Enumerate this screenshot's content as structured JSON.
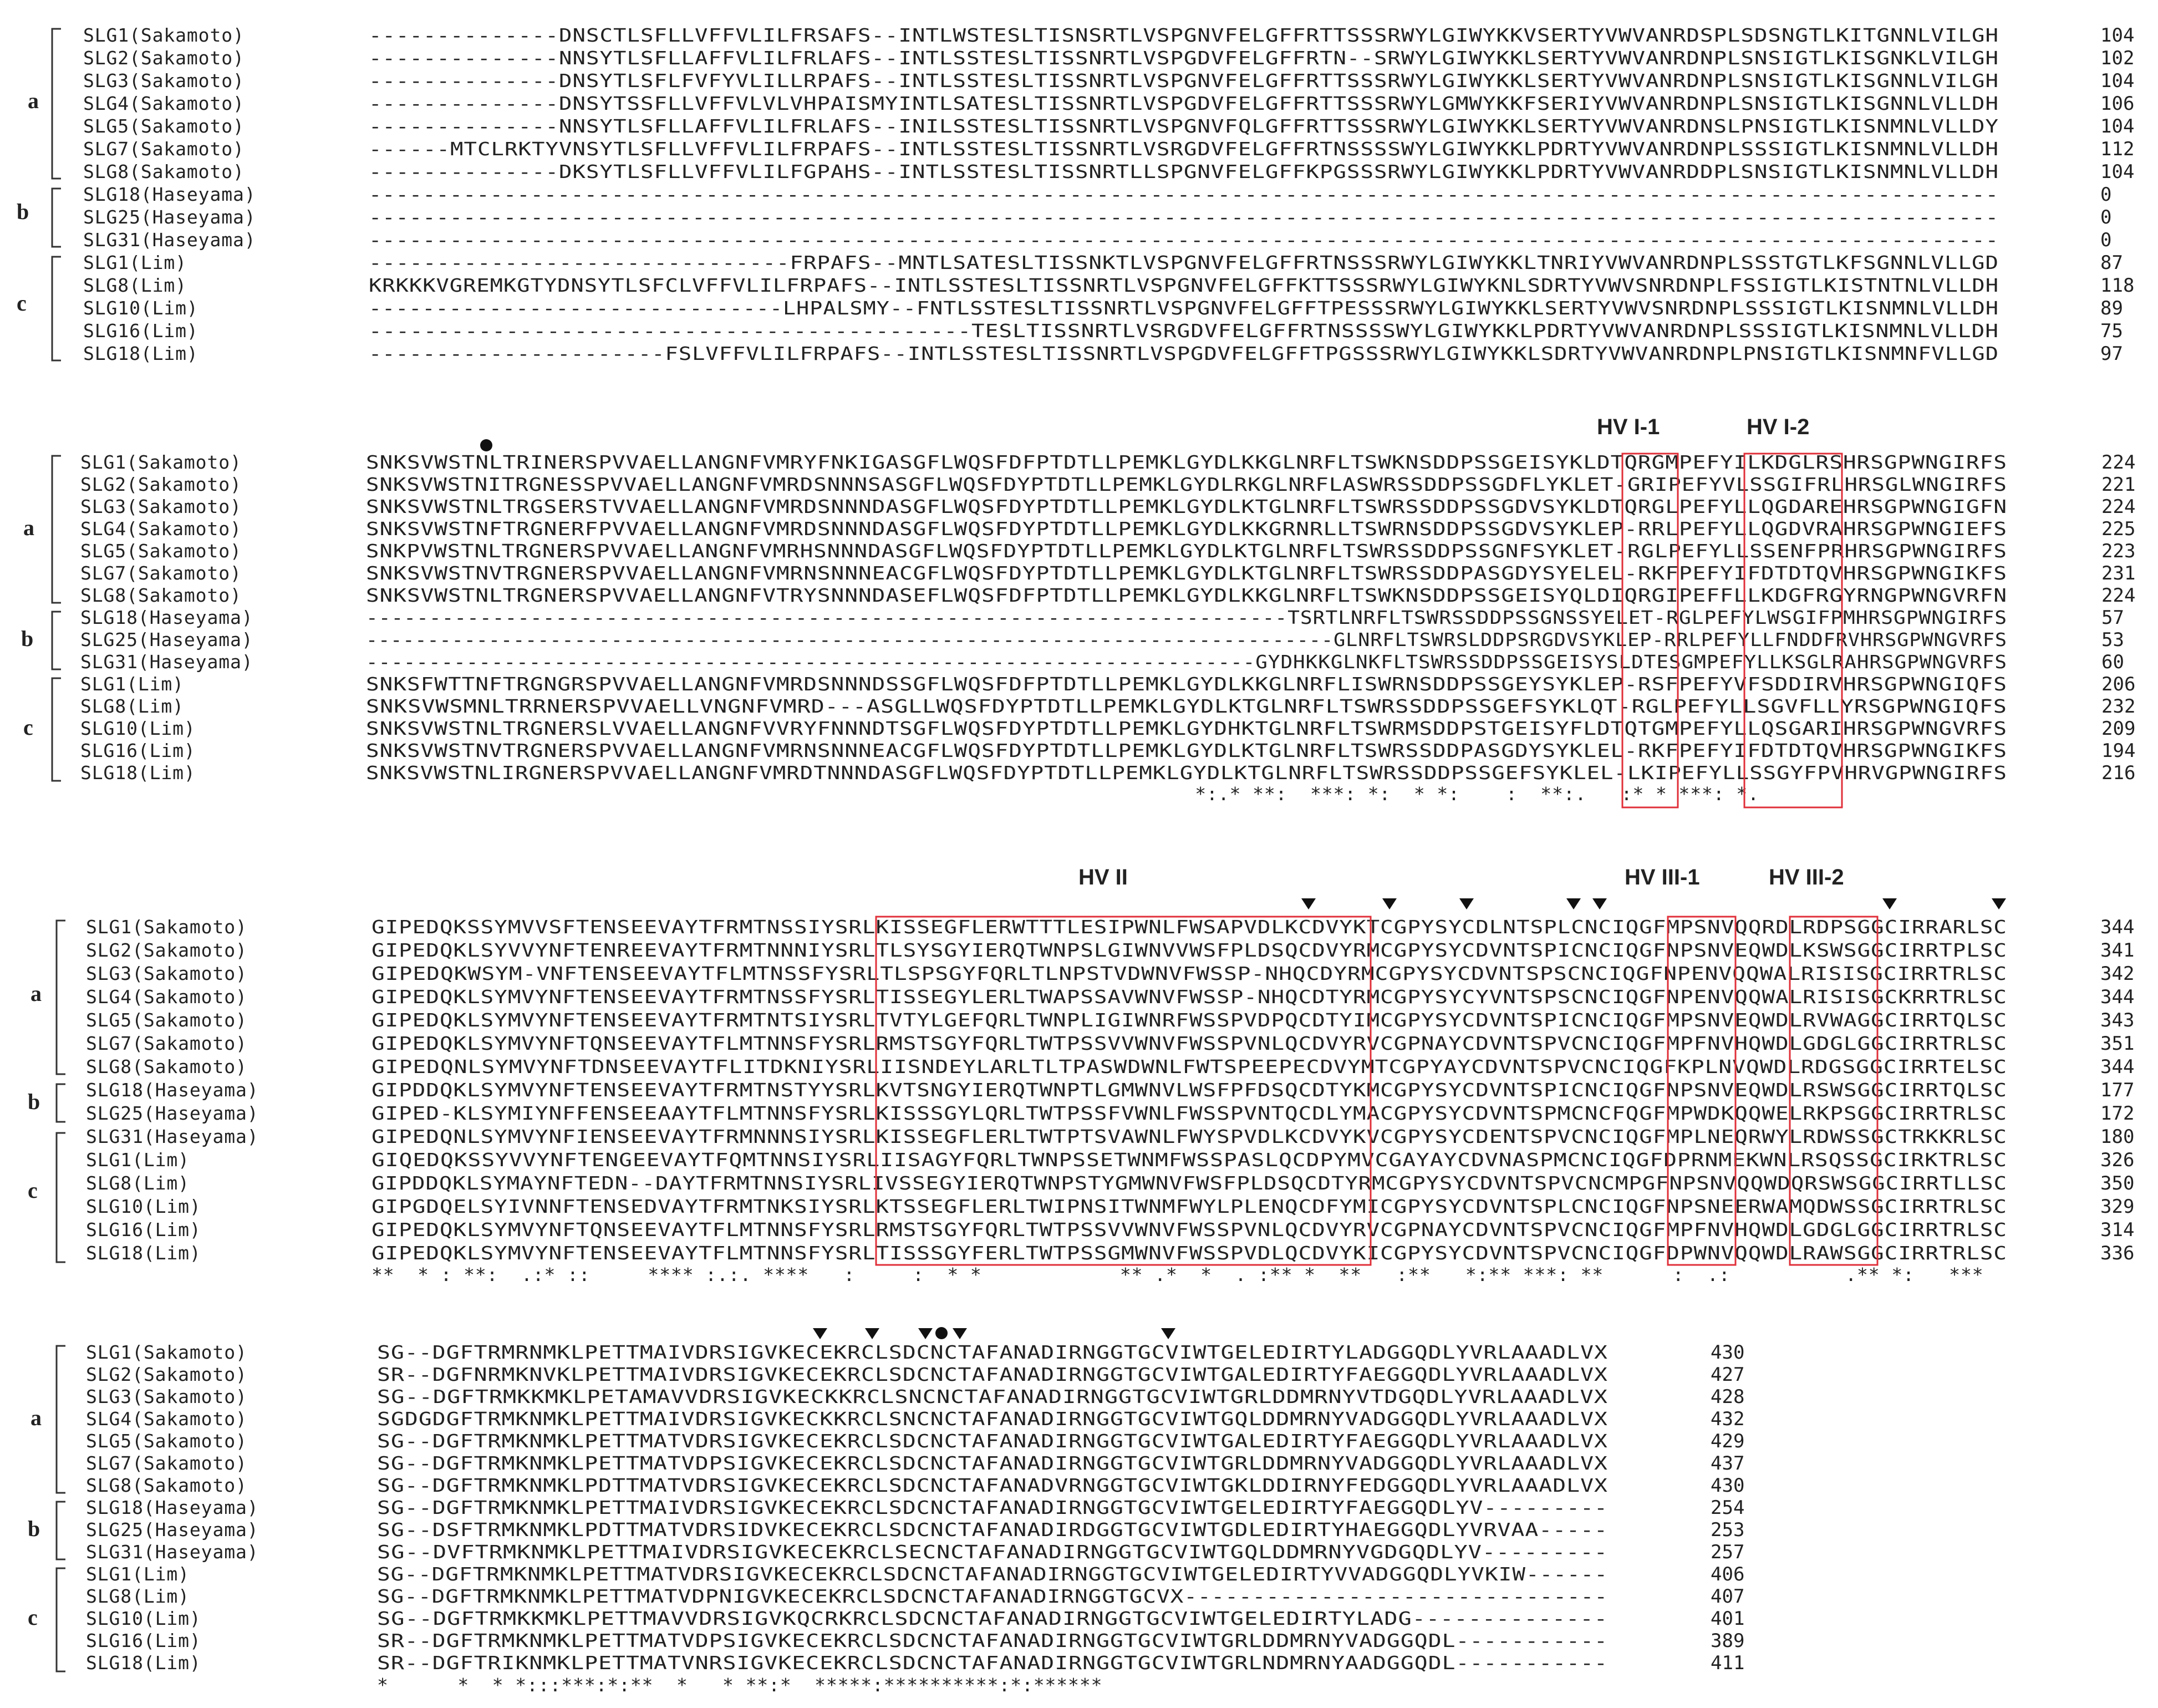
{
  "blocks": [
    {
      "rows": [
        {
          "name": "SLG1(Sakamoto)",
          "seq": "--------------DNSCTLSFLLVFFVLILFRSAFS--INTLWSTESLTISNSRTLVSPGNVFELGFFRTTSSSRWYLGIWYKKVSERTYVWVANRDSPLSDSNGTLKITGNNLVILGH",
          "len": "104"
        },
        {
          "name": "SLG2(Sakamoto)",
          "seq": "--------------NNSYTLSFLLAFFVLILFRLAFS--INTLSSTESLTISSNRTLVSPGDVFELGFFRTN--SRWYLGIWYKKLSERTYVWVANRDNPLSNSIGTLKISGNKLVILGH",
          "len": "102"
        },
        {
          "name": "SLG3(Sakamoto)",
          "seq": "--------------DNSYTLSFLFVFYVLILLRPAFS--INTLSSTESLTISSNRTLVSPGNVFELGFFRTTSSSRWYLGIWYKKLSERTYVWVANRDNPLSNSIGTLKISGNNLVILGH",
          "len": "104"
        },
        {
          "name": "SLG4(Sakamoto)",
          "seq": "--------------DNSYTSSFLLVFFVLVLVHPAISMYINTLSATESLTISSNRTLVSPGDVFELGFFRTTSSSRWYLGMWYKKFSERIYVWVANRDNPLSNSIGTLKISGNNLVLLDH",
          "len": "106"
        },
        {
          "name": "SLG5(Sakamoto)",
          "seq": "--------------NNSYTLSFLLAFFVLILFRLAFS--INILSSTESLTISSNRTLVSPGNVFQLGFFRTTSSSRWYLGIWYKKLSERTYVWVANRDNSLPNSIGTLKISNMNLVLLDY",
          "len": "104"
        },
        {
          "name": "SLG7(Sakamoto)",
          "seq": "------MTCLRKTYVNSYTLSFLLVFFVLILFRPAFS--INTLSSTESLTISSNRTLVSRGDVFELGFFRTNSSSSWYLGIWYKKLPDRTYVWVANRDNPLSSSIGTLKISNMNLVLLDH",
          "len": "112"
        },
        {
          "name": "SLG8(Sakamoto)",
          "seq": "--------------DKSYTLSFLLVFFVLILFGPAHS--INTLSSTESLTISSNRTLLSPGNVFELGFFKPGSSSRWYLGIWYKKLPDRTYVWVANRDDPLSNSIGTLKISNMNLVLLDH",
          "len": "104"
        },
        {
          "name": "SLG18(Haseyama)",
          "seq": "-------------------------------------------------------------------------------------------------------------------------",
          "len": "0"
        },
        {
          "name": "SLG25(Haseyama)",
          "seq": "-------------------------------------------------------------------------------------------------------------------------",
          "len": "0"
        },
        {
          "name": "SLG31(Haseyama)",
          "seq": "-------------------------------------------------------------------------------------------------------------------------",
          "len": "0"
        },
        {
          "name": "SLG1(Lim)",
          "seq": "-------------------------------FRPAFS--MNTLSATESLTISSNKTLVSPGNVFELGFFRTNSSSRWYLGIWYKKLTNRIYVWVANRDNPLSSSTGTLKFSGNNLVLLGD",
          "len": "87"
        },
        {
          "name": "SLG8(Lim)",
          "seq": "KRKKKVGREMKGTYDNSYTLSFCLVFFVLILFRPAFS--INTLSSTESLTISSNRTLVSPGNVFELGFFKTTSSSRWYLGIWYKNLSDRTYVWVSNRDNPLFSSIGTLKISTNTNLVLLDH",
          "len": "118"
        },
        {
          "name": "SLG10(Lim)",
          "seq": "-------------------------------LHPALSMY--FNTLSSTESLTISSNRTLVSPGNVFELGFFTPESSSRWYLGIWYKKLSERTYVWVSNRDNPLSSSIGTLKISNMNLVLLDH",
          "len": "89"
        },
        {
          "name": "SLG16(Lim)",
          "seq": "--------------------------------------------TESLTISSNRTLVSRGDVFELGFFRTNSSSSWYLGIWYKKLPDRTYVWVANRDNPLSSSIGTLKISNMNLVLLDH",
          "len": "75"
        },
        {
          "name": "SLG18(Lim)",
          "seq": "----------------------FSLVFFVLILFRPAFS--INTLSSTESLTISSNRTLVSPGDVFELGFFTPGSSSRWYLGIWYKKLSDRTYVWVANRDNPLPNSIGTLKISNMNFVLLGD",
          "len": "97"
        }
      ],
      "consensus": "",
      "features": []
    },
    {
      "rows": [
        {
          "name": "SLG1(Sakamoto)",
          "seq": "SNKSVWSTNLTRINERSPVVAELLANGNFVMRYFNKIGASGFLWQSFDFPTDTLLPEMKLGYDLKKGLNRFLTSWKNSDDPSSGEISYKLDTQRGMPEFYILKDGLRSHRSGPWNGIRFS",
          "len": "224"
        },
        {
          "name": "SLG2(Sakamoto)",
          "seq": "SNKSVWSTNITRGNESSPVVAELLANGNFVMRDSNNNSASGFLWQSFDYPTDTLLPEMKLGYDLRKGLNRFLASWRSSDDPSSGDFLYKLET-GRIPEFYVLSSGIFRLHRSGLWNGIRFS",
          "len": "221"
        },
        {
          "name": "SLG3(Sakamoto)",
          "seq": "SNKSVWSTNLTRGSERSTVVAELLANGNFVMRDSNNNDASGFLWQSFDYPTDTLLPEMKLGYDLKTGLNRFLTSWRSSDDPSSGDVSYKLDTQRGLPEFYLLQGDAREHRSGPWNGIGFN",
          "len": "224"
        },
        {
          "name": "SLG4(Sakamoto)",
          "seq": "SNKSVWSTNFTRGNERFPVVAELLANGNFVMRDSNNNDASGFLWQSFDYPTDTLLPEMKLGYDLKKGRNRLLTSWRNSDDPSSGDVSYKLEP-RRLPEFYLLQGDVRAHRSGPWNGIEFS",
          "len": "225"
        },
        {
          "name": "SLG5(Sakamoto)",
          "seq": "SNKPVWSTNLTRGNERSPVVAELLANGNFVMRHSNNNDASGFLWQSFDYPTDTLLPEMKLGYDLKTGLNRFLTSWRSSDDPSSGNFSYKLET-RGLPEFYLLSSENFPRHRSGPWNGIRFS",
          "len": "223"
        },
        {
          "name": "SLG7(Sakamoto)",
          "seq": "SNKSVWSTNVTRGNERSPVVAELLANGNFVMRNSNNNEACGFLWQSFDYPTDTLLPEMKLGYDLKTGLNRFLTSWRSSDDPASGDYSYELEL-RKFPEFYIFDTDTQVHRSGPWNGIKFS",
          "len": "231"
        },
        {
          "name": "SLG8(Sakamoto)",
          "seq": "SNKSVWSTNLTRGNERSPVVAELLANGNFVTRYSNNNDASEFLWQSFDFPTDTLLPEMKLGYDLKKGLNRFLTSWKNSDDPSSGEISYQLDIQRGIPEFFLLKDGFRGYRNGPWNGVRFN",
          "len": "224"
        },
        {
          "name": "SLG18(Haseyama)",
          "seq": "-------------------------------------------------------------------------TSRTLNRFLTSWRSSDDPSSGNSSYELET-RGLPEFYLWSGIFPMHRSGPWNGIRFS",
          "len": "57"
        },
        {
          "name": "SLG25(Haseyama)",
          "seq": "-------------------------------------------------------------------------------GLNRFLTSWRSLDDPSRGDVSYKLEP-RRLPEFYLLFNDDFRVHRSGPWNGVRFS",
          "len": "53"
        },
        {
          "name": "SLG31(Haseyama)",
          "seq": "-----------------------------------------------------------------------GYDHKKGLNKFLTSWRSSDDPSSGEISYSLDTESGMPEFYLLKSGLRAHRSGPWNGVRFS",
          "len": "60"
        },
        {
          "name": "SLG1(Lim)",
          "seq": "SNKSFWTTNFTRGNGRSPVVAELLANGNFVMRDSNNNDSSGFLWQSFDFPTDTLLPEMKLGYDLKKGLNRFLISWRNSDDPSSGEYSYKLEP-RSFPEFYVFSDDIRVHRSGPWNGIQFS",
          "len": "206"
        },
        {
          "name": "SLG8(Lim)",
          "seq": "SNKSVWSMNLTRRNERSPVVAELLVNGNFVMRD---ASGLLWQSFDYPTDTLLPEMKLGYDLKTGLNRFLTSWRSSDDPSSGEFSYKLQT-RGLPEFYLLSGVFLLYRSGPWNGIQFS",
          "len": "232"
        },
        {
          "name": "SLG10(Lim)",
          "seq": "SNKSVWSTNLTRGNERSLVVAELLANGNFVVRYFNNNDTSGFLWQSFDYPTDTLLPEMKLGYDHKTGLNRFLTSWRMSDDPSTGEISYFLDTQTGMPEFYLLQSGARIHRSGPWNGVRFS",
          "len": "209"
        },
        {
          "name": "SLG16(Lim)",
          "seq": "SNKSVWSTNVTRGNERSPVVAELLANGNFVMRNSNNNEACGFLWQSFDYPTDTLLPEMKLGYDLKTGLNRFLTSWRSSDDPASGDYSYKLEL-RKFPEFYIFDTDTQVHRSGPWNGIKFS",
          "len": "194"
        },
        {
          "name": "SLG18(Lim)",
          "seq": "SNKSVWSTNLIRGNERSPVVAELLANGNFVMRDTNNNDASGFLWQSFDYPTDTLLPEMKLGYDLKTGLNRFLTSWRSSDDPSSGEFSYKLEL-LKIPEFYLLSSGYFPVHRVGPWNGIRFS",
          "len": "216"
        }
      ],
      "consensus": "                                                                        *:.* **:  ***: *:  * *:    :  **:.   :* * ***: *.",
      "features": [
        {
          "label": "HV I-1",
          "type": "box"
        },
        {
          "label": "HV I-2",
          "type": "box"
        },
        {
          "label": "",
          "type": "dot"
        }
      ]
    },
    {
      "rows": [
        {
          "name": "SLG1(Sakamoto)",
          "seq": "GIPEDQKSSYMVVSFTENSEEVAYTFRMTNSSIYSRLKISSEGFLERWTTTLESIPWNLFWSAPVDLKCDVYKTCGPYSYCDLNTSPLCNCIQGFMPSNVQQRDLRDPSGGCIRRARLSC",
          "len": "344"
        },
        {
          "name": "SLG2(Sakamoto)",
          "seq": "GIPEDQKLSYVVYNFTENREEVAYTFRMTNNNIYSRLTLSYSGYIERQTWNPSLGIWNVVWSFPLDSQCDVYRMCGPYSYCDVNTSPICNCIQGFNPSNVEQWDLKSWSGGCIRRTPLSC",
          "len": "341"
        },
        {
          "name": "SLG3(Sakamoto)",
          "seq": "GIPEDQKWSYM-VNFTENSEEVAYTFLMTNSSFYSRLTLSPSGYFQRLTLNPSTVDWNVFWSSP-NHQCDYRMCGPYSYCDVNTSPSCNCIQGFNPENVQQWALRISISGCIRRTRLSC",
          "len": "342"
        },
        {
          "name": "SLG4(Sakamoto)",
          "seq": "GIPEDQKLSYMVYNFTENSEEVAYTFRMTNSSFYSRLTISSEGYLERLTWAPSSAVWNVFWSSP-NHQCDTYRMCGPYSYCYVNTSPSCNCIQGFNPENVQQWALRISISGCKRRTRLSC",
          "len": "344"
        },
        {
          "name": "SLG5(Sakamoto)",
          "seq": "GIPEDQKLSYMVYNFTENSEEVAYTFRMTNTSIYSRLTVTYLGEFQRLTWNPLIGIWNRFWSSPVDPQCDTYIMCGPYSYCDVNTSPICNCIQGFMPSNVEQWDLRVWAGGCIRRTQLSC",
          "len": "343"
        },
        {
          "name": "SLG7(Sakamoto)",
          "seq": "GIPEDQKLSYMVYNFTQNSEEVAYTFLMTNNSFYSRLRMSTSGYFQRLTWTPSSVVWNVFWSSPVNLQCDVYRVCGPNAYCDVNTSPVCNCIQGFMPFNVHQWDLGDGLGGCIRRTRLSC",
          "len": "351"
        },
        {
          "name": "SLG8(Sakamoto)",
          "seq": "GIPEDQNLSYMVYNFTDNSEEVAYTFLITDKNIYSRLIISNDEYLARLTLTPASWDWNLFWTSPEEPECDVYMTCGPYAYCDVNTSPVCNCIQGFKPLNVQWDLRDGSGGCIRRTELSC",
          "len": "344"
        },
        {
          "name": "SLG18(Haseyama)",
          "seq": "GIPDDQKLSYMVYNFTENSEEVAYTFRMTNSTYYSRLKVTSNGYIERQTWNPTLGMWNVLWSFPFDSQCDTYKMCGPYSYCDVNTSPICNCIQGFNPSNVEQWDLRSWSGGCIRRTQLSC",
          "len": "177"
        },
        {
          "name": "SLG25(Haseyama)",
          "seq": "GIPED-KLSYMIYNFFENSEEAAYTFLMTNNSFYSRLKISSSGYLQRLTWTPSSFVWNLFWSSPVNTQCDLYMACGPYSYCDVNTSPMCNCFQGFMPWDKQQWELRKPSGGCIRRTRLSC",
          "len": "172"
        },
        {
          "name": "SLG31(Haseyama)",
          "seq": "GIPEDQNLSYMVYNFIENSEEVAYTFRMNNNSIYSRLKISSEGFLERLTWTPTSVAWNLFWYSPVDLKCDVYKVCGPYSYCDENTSPVCNCIQGFMPLNEQRWYLRDWSSGCTRKKRLSC",
          "len": "180"
        },
        {
          "name": "SLG1(Lim)",
          "seq": "GIQEDQKSSYVVYNFTENGEEVAYTFQMTNNSIYSRLIISAGYFQRLTWNPSSETWNMFWSSPASLQCDPYMVCGAYAYCDVNASPMCNCIQGFDPRNMEKWNLRSQSSGCIRKTRLSC",
          "len": "326"
        },
        {
          "name": "SLG8(Lim)",
          "seq": "GIPDDQKLSYMAYNFTEDN--DAYTFRMTNNSIYSRLIVSSEGYIERQTWNPSTYGMWNVFWSFPLDSQCDTYRMCGPYSYCDVNTSPVCNCMPGFNPSNVQQWDQRSWSGGCIRRTLLSC",
          "len": "350"
        },
        {
          "name": "SLG10(Lim)",
          "seq": "GIPGDQELSYIVNNFTENSEDVAYTFRMTNKSIYSRLKTSSEGFLERLTWIPNSITWNMFWYLPLENQCDFYMICGPYSYCDVNTSPLCNCIQGFNPSNEERWAMQDWSSGCIRRTRLSC",
          "len": "329"
        },
        {
          "name": "SLG16(Lim)",
          "seq": "GIPEDQKLSYMVYNFTQNSEEVAYTFLMTNNSFYSRLRMSTSGYFQRLTWTPSSVVWNVFWSSPVNLQCDVYRVCGPNAYCDVNTSPVCNCIQGFMPFNVHQWDLGDGLGGCIRRTRLSC",
          "len": "314"
        },
        {
          "name": "SLG18(Lim)",
          "seq": "GIPEDQKLSYMVYNFTENSEEVAYTFLMTNNSFYSRLTISSSGYFERLTWTPSSGMWNVFWSSPVDLQCDVYKICGPYSYCDVNTSPVCNCIQGFDPWNVQQWDLRAWSGGCIRRTRLSC",
          "len": "336"
        }
      ],
      "consensus": "**  * : **:  .:* ::     **** :.:. ****   :     :  * *            ** .*  *  . :** *  **   :**   *:** ***: **      :  .:          .** *:   ***",
      "features": [
        {
          "label": "HV II",
          "type": "box"
        },
        {
          "label": "HV III-1",
          "type": "box"
        },
        {
          "label": "HV III-2",
          "type": "box"
        },
        {
          "label": "",
          "type": "triangle"
        }
      ]
    },
    {
      "rows": [
        {
          "name": "SLG1(Sakamoto)",
          "seq": "SG--DGFTRMRNMKLPETTMAIVDRSIGVKECEKRCLSDCNCTAFANADIRNGGTGCVIWTGELEDIRTYLADGGQDLYVRLAAADLVX",
          "len": "430"
        },
        {
          "name": "SLG2(Sakamoto)",
          "seq": "SR--DGFNRMKNVKLPETTMAIVDRSIGVKECEKRCLSDCNCTAFANADIRNGGTGCVIWTGALEDIRTYFAEGGQDLYVRLAAADLVX",
          "len": "427"
        },
        {
          "name": "SLG3(Sakamoto)",
          "seq": "SG--DGFTRMKKMKLPETAMAVVDRSIGVKECKKRCLSNCNCTAFANADIRNGGTGCVIWTGRLDDMRNYVTDGQDLYVRLAAADLVX",
          "len": "428"
        },
        {
          "name": "SLG4(Sakamoto)",
          "seq": "SGDGDGFTRMKNMKLPETTMAIVDRSIGVKECKKRCLSNCNCTAFANADIRNGGTGCVIWTGQLDDMRNYVADGGQDLYVRLAAADLVX",
          "len": "432"
        },
        {
          "name": "SLG5(Sakamoto)",
          "seq": "SG--DGFTRMKNMKLPETTMATVDRSIGVKECEKRCLSDCNCTAFANADIRNGGTGCVIWTGALEDIRTYFAEGGQDLYVRLAAADLVX",
          "len": "429"
        },
        {
          "name": "SLG7(Sakamoto)",
          "seq": "SG--DGFTRMKNMKLPETTMATVDPSIGVKECEKRCLSDCNCTAFANADIRNGGTGCVIWTGRLDDMRNYVADGGQDLYVRLAAADLVX",
          "len": "437"
        },
        {
          "name": "SLG8(Sakamoto)",
          "seq": "SG--DGFTRMKNMKLPDTTMATVDRSIGVKECEKRCLSDCNCTAFANADVRNGGTGCVIWTGKLDDIRNYFEDGGQDLYVRLAAADLVX",
          "len": "430"
        },
        {
          "name": "SLG18(Haseyama)",
          "seq": "SG--DGFTRMKNMKLPETTMAIVDRSIGVKECEKRCLSDCNCTAFANADIRNGGTGCVIWTGELEDIRTYFAEGGQDLYV---------",
          "len": "254"
        },
        {
          "name": "SLG25(Haseyama)",
          "seq": "SG--DSFTRMKNMKLPDTTMATVDRSIDVKECEKRCLSDCNCTAFANADIRDGGTGCVIWTGDLEDIRTYHAEGGQDLYVRVAA-----",
          "len": "253"
        },
        {
          "name": "SLG31(Haseyama)",
          "seq": "SG--DVFTRMKNMKLPETTMAIVDRSIGVKECEKRCLSECNCTAFANADIRNGGTGCVIWTGQLDDMRNYVGDGQDLYV---------",
          "len": "257"
        },
        {
          "name": "SLG1(Lim)",
          "seq": "SG--DGFTRMKNMKLPETTMATVDRSIGVKECEKRCLSDCNCTAFANADIRNGGTGCVIWTGELEDIRTYVVADGGQDLYVKIW------",
          "len": "406"
        },
        {
          "name": "SLG8(Lim)",
          "seq": "SG--DGFTRMKNMKLPETTMATVDPNIGVKECEKRCLSDCNCTAFANADIRNGGTGCVX-------------------------------",
          "len": "407"
        },
        {
          "name": "SLG10(Lim)",
          "seq": "SG--DGFTRMKKMKLPETTMAVVDRSIGVKQCRKRCLSDCNCTAFANADIRNGGTGCVIWTGELEDIRTYLADG--------------",
          "len": "401"
        },
        {
          "name": "SLG16(Lim)",
          "seq": "SR--DGFTRMKNMKLPETTMATVDPSIGVKECEKRCLSDCNCTAFANADIRNGGTGCVIWTGRLDDMRNYVADGGQDL-----------",
          "len": "389"
        },
        {
          "name": "SLG18(Lim)",
          "seq": "SR--DGFTRIKNMKLPETTMATVNRSIGVKECEKRCLSDCNCTAFANADIRNGGTGCVIWTGRLNDMRNYAADGGQDL-----------",
          "len": "411"
        }
      ],
      "consensus": "*      *  * *:::***:*:**  *   * **:*  *****:**********:*:******",
      "features": [
        {
          "label": "",
          "type": "triangle"
        },
        {
          "label": "",
          "type": "dot"
        }
      ]
    }
  ],
  "group_labels": [
    "a",
    "b",
    "c"
  ],
  "colors": {
    "box": "#e0303a",
    "text": "#222222",
    "mark": "#111111"
  }
}
